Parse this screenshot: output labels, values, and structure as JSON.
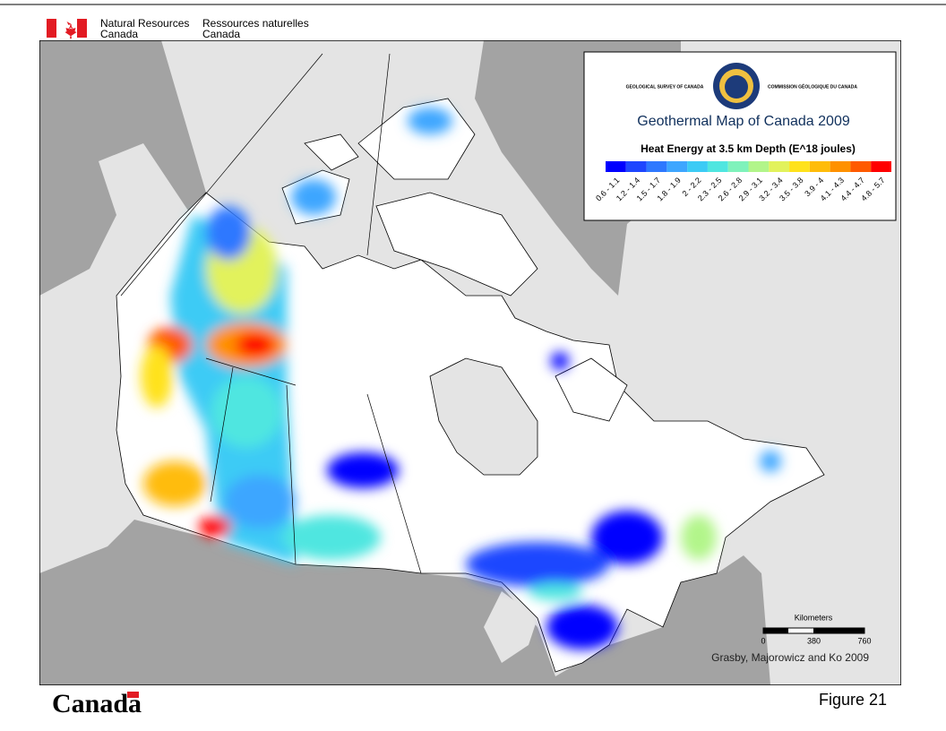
{
  "header": {
    "en_line1": "Natural Resources",
    "en_line2": "Canada",
    "fr_line1": "Ressources naturelles",
    "fr_line2": "Canada"
  },
  "legend": {
    "agency_en": "GEOLOGICAL SURVEY OF CANADA",
    "agency_fr": "COMMISSION GÉOLOGIQUE DU CANADA",
    "title": "Geothermal Map of Canada 2009",
    "subtitle": "Heat Energy at 3.5 km Depth (E^18 joules)",
    "bins": [
      {
        "label": "0.6 - 1.1",
        "color": "#0000ff"
      },
      {
        "label": "1.2 - 1.4",
        "color": "#1e46ff"
      },
      {
        "label": "1.5 - 1.7",
        "color": "#2e78ff"
      },
      {
        "label": "1.8 - 1.9",
        "color": "#3ea6ff"
      },
      {
        "label": "2 - 2.2",
        "color": "#3ccbf5"
      },
      {
        "label": "2.3 - 2.5",
        "color": "#4fe6e0"
      },
      {
        "label": "2.6 - 2.8",
        "color": "#7ff2bb"
      },
      {
        "label": "2.9 - 3.1",
        "color": "#b2f58a"
      },
      {
        "label": "3.2 - 3.4",
        "color": "#e2f25c"
      },
      {
        "label": "3.5 - 3.8",
        "color": "#ffe21c"
      },
      {
        "label": "3.9 - 4",
        "color": "#ffbc0a"
      },
      {
        "label": "4.1 - 4.3",
        "color": "#ff9100"
      },
      {
        "label": "4.4 - 4.7",
        "color": "#ff5a00"
      },
      {
        "label": "4.8 - 5.7",
        "color": "#ff0000"
      }
    ]
  },
  "scale": {
    "unit": "Kilometers",
    "ticks": [
      0,
      380,
      760
    ]
  },
  "credit": "Grasby, Majorowicz and Ko 2009",
  "footer": {
    "wordmark": "Canada",
    "figure": "Figure 21"
  }
}
